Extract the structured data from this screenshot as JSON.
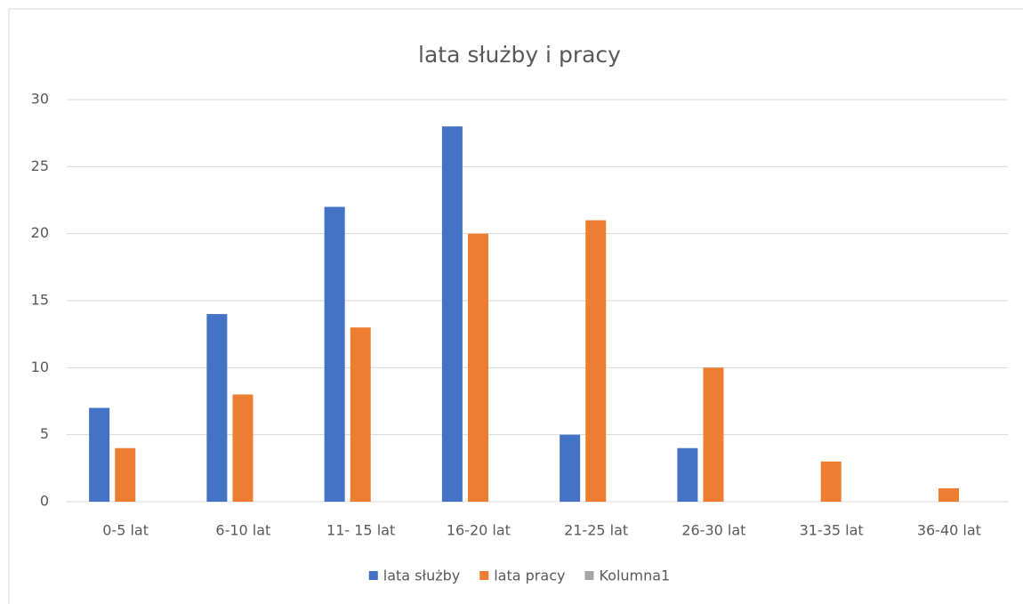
{
  "chart_data": {
    "type": "bar",
    "title": "lata służby i pracy",
    "categories": [
      "0-5 lat",
      "6-10 lat",
      "11- 15 lat",
      "16-20 lat",
      "21-25 lat",
      "26-30 lat",
      "31-35 lat",
      "36-40 lat"
    ],
    "series": [
      {
        "name": "lata służby",
        "color": "#4472c4",
        "values": [
          7,
          14,
          22,
          28,
          5,
          4,
          null,
          null
        ]
      },
      {
        "name": "lata pracy",
        "color": "#ed7d31",
        "values": [
          4,
          8,
          13,
          20,
          21,
          10,
          3,
          1
        ]
      },
      {
        "name": "Kolumna1",
        "color": "#a5a5a5",
        "values": [
          null,
          null,
          null,
          null,
          null,
          null,
          null,
          null
        ]
      }
    ],
    "ylim": [
      0,
      30
    ],
    "yticks": [
      0,
      5,
      10,
      15,
      20,
      25,
      30
    ],
    "grid": true,
    "legend": "bottom"
  }
}
